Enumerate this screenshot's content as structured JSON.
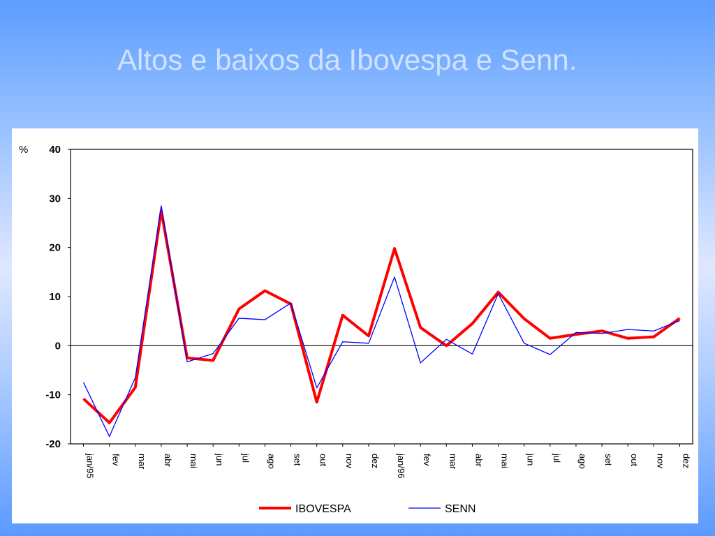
{
  "slide": {
    "title": "Altos e baixos da Ibovespa e Senn."
  },
  "chart_data": {
    "type": "line",
    "ylabel": "%",
    "ylim": [
      -20,
      40
    ],
    "yticks": [
      40,
      30,
      20,
      10,
      0,
      -10,
      -20
    ],
    "categories": [
      "jan/95",
      "fev",
      "mar",
      "abr",
      "mai",
      "jun",
      "jul",
      "ago",
      "set",
      "out",
      "nov",
      "dez",
      "jan/96",
      "fev",
      "mar",
      "abr",
      "mai",
      "jun",
      "jul",
      "ago",
      "set",
      "out",
      "nov",
      "dez"
    ],
    "series": [
      {
        "name": "IBOVESPA",
        "color": "#ff0000",
        "values": [
          -10.8,
          -15.7,
          -8.5,
          27.5,
          -2.5,
          -3,
          7.5,
          11.2,
          8.5,
          -11.5,
          6.2,
          2,
          19.8,
          3.7,
          0,
          4.5,
          10.9,
          5.5,
          1.5,
          2.3,
          3,
          1.5,
          1.8,
          5.6
        ]
      },
      {
        "name": "SENN",
        "color": "#0000ff",
        "values": [
          -7.5,
          -18.5,
          -6.5,
          28.5,
          -3.3,
          -1.6,
          5.6,
          5.3,
          8.7,
          -8.6,
          0.8,
          0.5,
          14,
          -3.5,
          1.3,
          -1.7,
          10.6,
          0.5,
          -1.8,
          2.7,
          2.5,
          3.3,
          3,
          5.1
        ]
      }
    ],
    "grid": false,
    "legend": "bottom"
  }
}
